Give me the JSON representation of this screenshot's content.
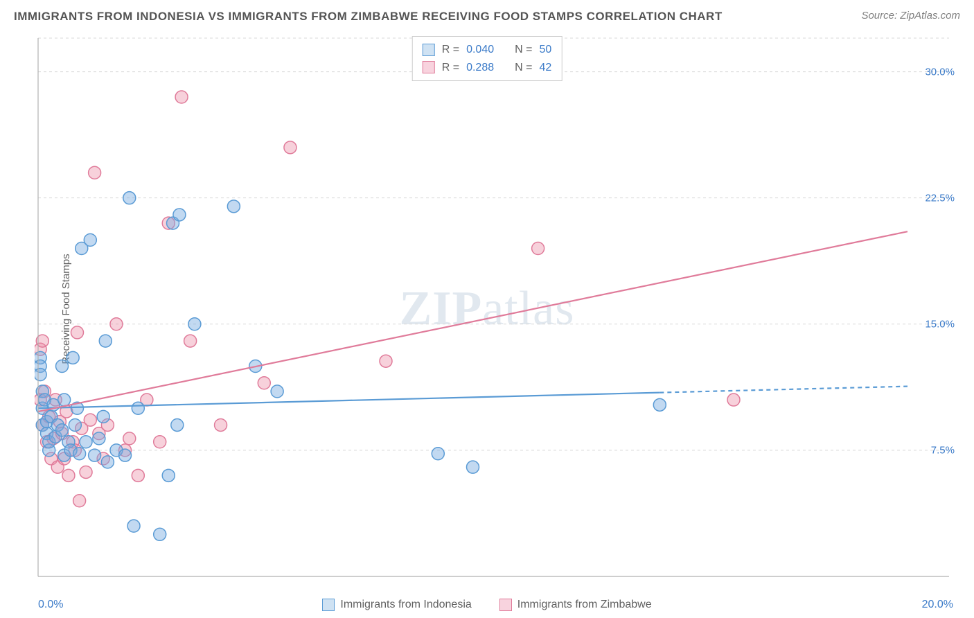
{
  "title": "IMMIGRANTS FROM INDONESIA VS IMMIGRANTS FROM ZIMBABWE RECEIVING FOOD STAMPS CORRELATION CHART",
  "source": "Source: ZipAtlas.com",
  "ylabel": "Receiving Food Stamps",
  "watermark_bold": "ZIP",
  "watermark_rest": "atlas",
  "xlim": [
    0,
    20
  ],
  "ylim": [
    0,
    32
  ],
  "x_axis_label_left": "0.0%",
  "x_axis_label_right": "20.0%",
  "y_ticks": [
    {
      "value": 7.5,
      "label": "7.5%"
    },
    {
      "value": 15.0,
      "label": "15.0%"
    },
    {
      "value": 22.5,
      "label": "22.5%"
    },
    {
      "value": 30.0,
      "label": "30.0%"
    }
  ],
  "grid_color": "#d8d8d8",
  "axis_color": "#b0b0b0",
  "background_color": "#ffffff",
  "marker_radius": 9,
  "marker_stroke_width": 1.5,
  "trend_line_width": 2.2,
  "series": [
    {
      "name": "Immigrants from Indonesia",
      "fill_color": "rgba(120,170,225,0.45)",
      "stroke_color": "#5a9bd5",
      "swatch_fill": "#cfe2f3",
      "swatch_stroke": "#5a9bd5",
      "R": "0.040",
      "N": "50",
      "trend": {
        "y_at_x0": 10.0,
        "y_at_xmax": 11.3,
        "solid_until_x": 14.3
      },
      "points": [
        [
          0.05,
          13.0
        ],
        [
          0.05,
          12.5
        ],
        [
          0.05,
          12.0
        ],
        [
          0.1,
          10.0
        ],
        [
          0.1,
          9.0
        ],
        [
          0.1,
          11.0
        ],
        [
          0.15,
          10.5
        ],
        [
          0.2,
          8.5
        ],
        [
          0.2,
          9.2
        ],
        [
          0.25,
          7.5
        ],
        [
          0.25,
          8.0
        ],
        [
          0.3,
          9.5
        ],
        [
          0.35,
          10.2
        ],
        [
          0.4,
          8.3
        ],
        [
          0.45,
          9.0
        ],
        [
          0.55,
          12.5
        ],
        [
          0.55,
          8.7
        ],
        [
          0.6,
          7.2
        ],
        [
          0.6,
          10.5
        ],
        [
          0.7,
          8.0
        ],
        [
          0.75,
          7.5
        ],
        [
          0.8,
          13.0
        ],
        [
          0.85,
          9.0
        ],
        [
          0.9,
          10.0
        ],
        [
          0.95,
          7.3
        ],
        [
          1.0,
          19.5
        ],
        [
          1.1,
          8.0
        ],
        [
          1.2,
          20.0
        ],
        [
          1.3,
          7.2
        ],
        [
          1.4,
          8.2
        ],
        [
          1.5,
          9.5
        ],
        [
          1.55,
          14.0
        ],
        [
          1.6,
          6.8
        ],
        [
          1.8,
          7.5
        ],
        [
          2.0,
          7.2
        ],
        [
          2.1,
          22.5
        ],
        [
          2.2,
          3.0
        ],
        [
          2.3,
          10.0
        ],
        [
          2.8,
          2.5
        ],
        [
          3.0,
          6.0
        ],
        [
          3.1,
          21.0
        ],
        [
          3.2,
          9.0
        ],
        [
          3.25,
          21.5
        ],
        [
          3.6,
          15.0
        ],
        [
          4.5,
          22.0
        ],
        [
          5.0,
          12.5
        ],
        [
          5.5,
          11.0
        ],
        [
          9.2,
          7.3
        ],
        [
          10.0,
          6.5
        ],
        [
          14.3,
          10.2
        ]
      ]
    },
    {
      "name": "Immigrants from Zimbabwe",
      "fill_color": "rgba(235,140,165,0.40)",
      "stroke_color": "#e07b9a",
      "swatch_fill": "#f8d3de",
      "swatch_stroke": "#e07b9a",
      "R": "0.288",
      "N": "42",
      "trend": {
        "y_at_x0": 9.8,
        "y_at_xmax": 20.5,
        "solid_until_x": 20
      },
      "points": [
        [
          0.05,
          13.5
        ],
        [
          0.05,
          10.5
        ],
        [
          0.1,
          14.0
        ],
        [
          0.1,
          9.0
        ],
        [
          0.15,
          11.0
        ],
        [
          0.2,
          8.0
        ],
        [
          0.25,
          9.5
        ],
        [
          0.3,
          7.0
        ],
        [
          0.35,
          8.2
        ],
        [
          0.4,
          10.5
        ],
        [
          0.45,
          6.5
        ],
        [
          0.5,
          9.2
        ],
        [
          0.55,
          8.5
        ],
        [
          0.6,
          7.0
        ],
        [
          0.65,
          9.8
        ],
        [
          0.7,
          6.0
        ],
        [
          0.8,
          8.0
        ],
        [
          0.85,
          7.5
        ],
        [
          0.9,
          14.5
        ],
        [
          0.95,
          4.5
        ],
        [
          1.0,
          8.8
        ],
        [
          1.1,
          6.2
        ],
        [
          1.2,
          9.3
        ],
        [
          1.3,
          24.0
        ],
        [
          1.4,
          8.5
        ],
        [
          1.5,
          7.0
        ],
        [
          1.6,
          9.0
        ],
        [
          1.8,
          15.0
        ],
        [
          2.0,
          7.5
        ],
        [
          2.1,
          8.2
        ],
        [
          2.3,
          6.0
        ],
        [
          2.5,
          10.5
        ],
        [
          2.8,
          8.0
        ],
        [
          3.0,
          21.0
        ],
        [
          3.3,
          28.5
        ],
        [
          3.5,
          14.0
        ],
        [
          4.2,
          9.0
        ],
        [
          5.2,
          11.5
        ],
        [
          5.8,
          25.5
        ],
        [
          8.0,
          12.8
        ],
        [
          11.5,
          19.5
        ],
        [
          16.0,
          10.5
        ]
      ]
    }
  ],
  "stats_legend_labels": {
    "R_prefix": "R =",
    "N_prefix": "N ="
  }
}
